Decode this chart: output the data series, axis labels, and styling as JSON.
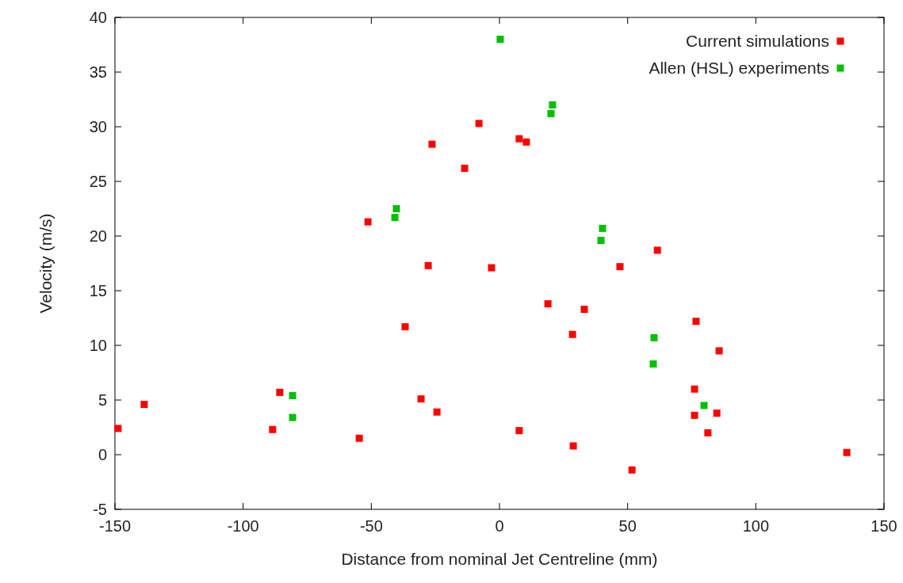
{
  "chart_data": {
    "type": "scatter",
    "xlabel": "Distance from nominal Jet Centreline (mm)",
    "ylabel": "Velocity (m/s)",
    "xlim": [
      -150,
      150
    ],
    "xticks": [
      -150,
      -100,
      -50,
      0,
      50,
      100,
      150
    ],
    "ylim": [
      -5,
      40
    ],
    "yticks": [
      -5,
      0,
      5,
      10,
      15,
      20,
      25,
      30,
      35,
      40
    ],
    "grid": false,
    "legend": "top right",
    "marker": "square",
    "series": [
      {
        "name": "Current simulations",
        "color": "#ff0000",
        "x": [
          -148.8,
          -138.6,
          -85.7,
          -88.5,
          -54.7,
          -51.3,
          -30.6,
          -24.4,
          -36.8,
          -27.8,
          -26.3,
          -13.6,
          -8.0,
          -3.1,
          7.7,
          10.5,
          7.7,
          18.9,
          28.5,
          28.8,
          33.1,
          47.0,
          51.7,
          61.6,
          76.7,
          85.7,
          76.1,
          76.1,
          84.8,
          81.3,
          135.5
        ],
        "values": [
          2.4,
          4.6,
          5.7,
          2.3,
          1.5,
          21.3,
          5.1,
          3.9,
          11.7,
          17.3,
          28.4,
          26.2,
          30.3,
          17.1,
          28.9,
          28.6,
          2.2,
          13.8,
          11.0,
          0.8,
          13.3,
          17.2,
          -1.4,
          18.7,
          12.2,
          9.5,
          6.0,
          3.6,
          3.8,
          2.0,
          0.2
        ]
      },
      {
        "name": "Allen (HSL) experiments",
        "color": "#00c000",
        "x": [
          0.3,
          20.7,
          20.1,
          -40.2,
          -40.8,
          40.2,
          39.6,
          60.3,
          60.0,
          -80.7,
          -80.7,
          79.8
        ],
        "values": [
          38.0,
          32.0,
          31.2,
          22.5,
          21.7,
          20.7,
          19.6,
          10.7,
          8.3,
          5.4,
          3.4,
          4.5
        ]
      }
    ]
  }
}
